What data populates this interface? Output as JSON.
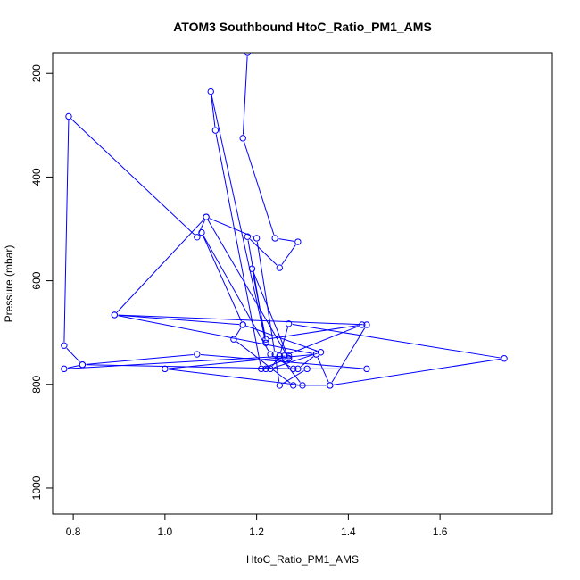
{
  "chart_data": {
    "type": "line",
    "title": "ATOM3 Southbound HtoC_Ratio_PM1_AMS",
    "xlabel": "HtoC_Ratio_PM1_AMS",
    "ylabel": "Pressure (mbar)",
    "xlim": [
      0.755,
      1.845
    ],
    "ylim": [
      1050,
      160
    ],
    "y_reversed": true,
    "x_ticks": [
      0.8,
      1.0,
      1.2,
      1.4,
      1.6
    ],
    "x_tick_labels": [
      "0.8",
      "1.0",
      "1.2",
      "1.4",
      "1.6"
    ],
    "y_ticks": [
      200,
      400,
      600,
      800,
      1000
    ],
    "y_tick_labels": [
      "200",
      "400",
      "600",
      "800",
      "1000"
    ],
    "grid": false,
    "marker": "open-circle",
    "series": [
      {
        "color": "#0000ff",
        "x": [
          1.18,
          1.17,
          1.24,
          1.29,
          1.25,
          1.18,
          1.22,
          1.1,
          1.11,
          1.21,
          1.27,
          1.09,
          1.07,
          0.79,
          0.78,
          0.82,
          1.07,
          1.44,
          1.22,
          1.28,
          1.23,
          1.08,
          1.17,
          1.15,
          1.28,
          1.36,
          1.33,
          1.0,
          1.3,
          1.25,
          1.27,
          1.74,
          1.36,
          1.44,
          0.89,
          1.17,
          1.34,
          1.23,
          1.25,
          1.26,
          1.43,
          1.22,
          1.19,
          1.27,
          1.27,
          0.78,
          0.82,
          1.29,
          1.33,
          0.89,
          1.09,
          1.2,
          1.24,
          1.25,
          1.31
        ],
        "y": [
          160,
          325,
          518,
          525,
          575,
          515,
          720,
          235,
          310,
          770,
          750,
          477,
          516,
          283,
          725,
          762,
          742,
          770,
          770,
          770,
          742,
          507,
          685,
          713,
          802,
          802,
          742,
          770,
          802,
          745,
          683,
          750,
          802,
          685,
          666,
          685,
          738,
          770,
          745,
          745,
          685,
          713,
          577,
          750,
          745,
          770,
          762,
          770,
          742,
          666,
          477,
          518,
          742,
          802,
          770
        ]
      }
    ]
  }
}
